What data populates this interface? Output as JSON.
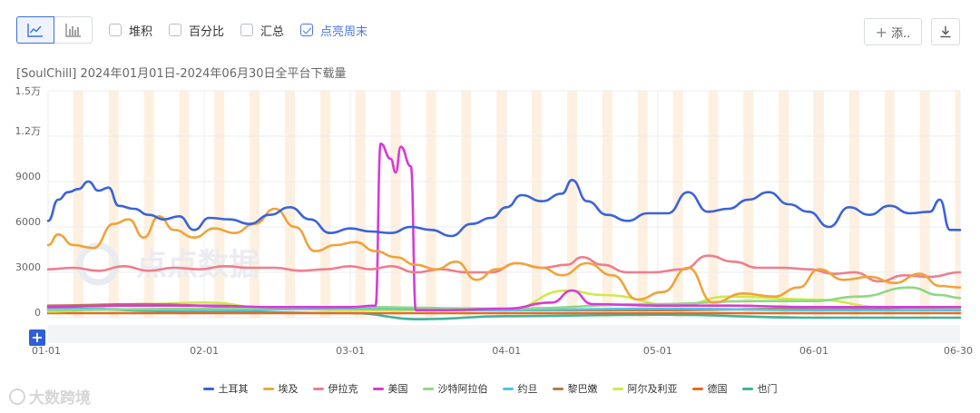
{
  "toolbar": {
    "options": [
      {
        "label": "堆积",
        "checked": false
      },
      {
        "label": "百分比",
        "checked": false
      },
      {
        "label": "汇总",
        "checked": false
      },
      {
        "label": "点亮周末",
        "checked": true
      }
    ],
    "add_label": "添..",
    "add_plus": "+",
    "expand_plus": "+"
  },
  "chart_title": "[SoulChill]  2024年01月01日-2024年06月30日全平台下载量",
  "watermark": "点点数据",
  "footer_watermark": "大数跨境",
  "colors": {
    "accent": "#3d6fe0",
    "weekend_band": "#fdf0e0"
  },
  "chart_data": {
    "type": "line",
    "title": "[SoulChill]  2024年01月01日-2024年06月30日全平台下载量",
    "x_start": "2024-01-01",
    "x_end": "2024-06-30",
    "xtick_labels": [
      "01-01",
      "02-01",
      "03-01",
      "04-01",
      "05-01",
      "06-01",
      "06-30"
    ],
    "xtick_dates": [
      "2024-01-01",
      "2024-02-01",
      "2024-03-01",
      "2024-04-01",
      "2024-05-01",
      "2024-06-01",
      "2024-06-30"
    ],
    "ytick_labels": [
      "0",
      "3000",
      "6000",
      "9000",
      "1.2万",
      "1.5万"
    ],
    "ytick_values": [
      0,
      3000,
      6000,
      9000,
      12000,
      15000
    ],
    "ylim": [
      0,
      15000
    ],
    "grid": true,
    "weekend_highlight": true,
    "legend_position": "bottom",
    "series": [
      {
        "name": "土耳其",
        "color": "#3b63d8",
        "keys": [
          [
            "2024-01-01",
            6400
          ],
          [
            "2024-01-03",
            7800
          ],
          [
            "2024-01-05",
            8300
          ],
          [
            "2024-01-07",
            8500
          ],
          [
            "2024-01-09",
            9000
          ],
          [
            "2024-01-11",
            8400
          ],
          [
            "2024-01-13",
            8600
          ],
          [
            "2024-01-15",
            7400
          ],
          [
            "2024-01-18",
            7200
          ],
          [
            "2024-01-21",
            6800
          ],
          [
            "2024-01-24",
            6500
          ],
          [
            "2024-01-27",
            6700
          ],
          [
            "2024-01-30",
            5800
          ],
          [
            "2024-02-02",
            6600
          ],
          [
            "2024-02-06",
            6500
          ],
          [
            "2024-02-10",
            6200
          ],
          [
            "2024-02-14",
            6800
          ],
          [
            "2024-02-18",
            7300
          ],
          [
            "2024-02-22",
            6500
          ],
          [
            "2024-02-26",
            5600
          ],
          [
            "2024-03-01",
            5900
          ],
          [
            "2024-03-05",
            5700
          ],
          [
            "2024-03-09",
            5600
          ],
          [
            "2024-03-13",
            6000
          ],
          [
            "2024-03-17",
            5800
          ],
          [
            "2024-03-21",
            5400
          ],
          [
            "2024-03-25",
            6200
          ],
          [
            "2024-03-29",
            6600
          ],
          [
            "2024-04-01",
            7300
          ],
          [
            "2024-04-04",
            8100
          ],
          [
            "2024-04-08",
            7700
          ],
          [
            "2024-04-12",
            8200
          ],
          [
            "2024-04-14",
            9100
          ],
          [
            "2024-04-17",
            7700
          ],
          [
            "2024-04-21",
            6800
          ],
          [
            "2024-04-25",
            6400
          ],
          [
            "2024-04-29",
            6900
          ],
          [
            "2024-05-03",
            6900
          ],
          [
            "2024-05-07",
            8300
          ],
          [
            "2024-05-11",
            7000
          ],
          [
            "2024-05-15",
            7200
          ],
          [
            "2024-05-19",
            7800
          ],
          [
            "2024-05-23",
            8300
          ],
          [
            "2024-05-27",
            7500
          ],
          [
            "2024-05-31",
            7000
          ],
          [
            "2024-06-04",
            6000
          ],
          [
            "2024-06-08",
            7300
          ],
          [
            "2024-06-12",
            6800
          ],
          [
            "2024-06-16",
            7400
          ],
          [
            "2024-06-20",
            6900
          ],
          [
            "2024-06-24",
            7000
          ],
          [
            "2024-06-26",
            7800
          ],
          [
            "2024-06-28",
            5800
          ],
          [
            "2024-06-30",
            5800
          ]
        ]
      },
      {
        "name": "埃及",
        "color": "#f0a33a",
        "keys": [
          [
            "2024-01-01",
            4800
          ],
          [
            "2024-01-03",
            5500
          ],
          [
            "2024-01-06",
            4800
          ],
          [
            "2024-01-10",
            4600
          ],
          [
            "2024-01-14",
            6200
          ],
          [
            "2024-01-17",
            6500
          ],
          [
            "2024-01-20",
            5300
          ],
          [
            "2024-01-23",
            6700
          ],
          [
            "2024-01-26",
            5800
          ],
          [
            "2024-01-30",
            5300
          ],
          [
            "2024-02-03",
            5900
          ],
          [
            "2024-02-07",
            5600
          ],
          [
            "2024-02-11",
            6200
          ],
          [
            "2024-02-15",
            7200
          ],
          [
            "2024-02-19",
            6000
          ],
          [
            "2024-02-23",
            4400
          ],
          [
            "2024-02-27",
            4800
          ],
          [
            "2024-03-02",
            5000
          ],
          [
            "2024-03-06",
            4400
          ],
          [
            "2024-03-10",
            4000
          ],
          [
            "2024-03-14",
            3500
          ],
          [
            "2024-03-18",
            3200
          ],
          [
            "2024-03-22",
            3700
          ],
          [
            "2024-03-26",
            2500
          ],
          [
            "2024-03-30",
            3200
          ],
          [
            "2024-04-03",
            3600
          ],
          [
            "2024-04-08",
            3300
          ],
          [
            "2024-04-12",
            2800
          ],
          [
            "2024-04-17",
            3600
          ],
          [
            "2024-04-22",
            2800
          ],
          [
            "2024-04-27",
            1200
          ],
          [
            "2024-05-02",
            1700
          ],
          [
            "2024-05-07",
            3300
          ],
          [
            "2024-05-12",
            1000
          ],
          [
            "2024-05-18",
            1600
          ],
          [
            "2024-05-24",
            1400
          ],
          [
            "2024-05-29",
            2000
          ],
          [
            "2024-06-02",
            3200
          ],
          [
            "2024-06-07",
            2500
          ],
          [
            "2024-06-12",
            2700
          ],
          [
            "2024-06-17",
            2300
          ],
          [
            "2024-06-22",
            2900
          ],
          [
            "2024-06-26",
            2100
          ],
          [
            "2024-06-30",
            2000
          ]
        ]
      },
      {
        "name": "伊拉克",
        "color": "#ef7d8c",
        "keys": [
          [
            "2024-01-01",
            3200
          ],
          [
            "2024-01-06",
            3300
          ],
          [
            "2024-01-11",
            3100
          ],
          [
            "2024-01-16",
            3400
          ],
          [
            "2024-01-21",
            3100
          ],
          [
            "2024-01-26",
            3300
          ],
          [
            "2024-01-31",
            3200
          ],
          [
            "2024-02-05",
            3400
          ],
          [
            "2024-02-10",
            3300
          ],
          [
            "2024-02-15",
            3300
          ],
          [
            "2024-02-20",
            3100
          ],
          [
            "2024-02-25",
            3200
          ],
          [
            "2024-03-01",
            3400
          ],
          [
            "2024-03-05",
            3200
          ],
          [
            "2024-03-09",
            3400
          ],
          [
            "2024-03-14",
            3000
          ],
          [
            "2024-03-19",
            3200
          ],
          [
            "2024-03-24",
            3000
          ],
          [
            "2024-03-29",
            3000
          ],
          [
            "2024-04-03",
            3600
          ],
          [
            "2024-04-08",
            3300
          ],
          [
            "2024-04-13",
            3500
          ],
          [
            "2024-04-16",
            4000
          ],
          [
            "2024-04-20",
            3500
          ],
          [
            "2024-04-25",
            3000
          ],
          [
            "2024-04-30",
            3000
          ],
          [
            "2024-05-06",
            3200
          ],
          [
            "2024-05-11",
            4100
          ],
          [
            "2024-05-16",
            3700
          ],
          [
            "2024-05-21",
            3300
          ],
          [
            "2024-05-26",
            3300
          ],
          [
            "2024-05-31",
            3200
          ],
          [
            "2024-06-05",
            2900
          ],
          [
            "2024-06-09",
            3000
          ],
          [
            "2024-06-14",
            2400
          ],
          [
            "2024-06-19",
            2800
          ],
          [
            "2024-06-24",
            2700
          ],
          [
            "2024-06-30",
            3000
          ]
        ]
      },
      {
        "name": "美国",
        "color": "#d63bd6",
        "keys": [
          [
            "2024-01-01",
            700
          ],
          [
            "2024-01-15",
            800
          ],
          [
            "2024-02-01",
            800
          ],
          [
            "2024-02-15",
            700
          ],
          [
            "2024-03-01",
            700
          ],
          [
            "2024-03-06",
            800
          ],
          [
            "2024-03-07",
            11500
          ],
          [
            "2024-03-09",
            10500
          ],
          [
            "2024-03-10",
            9600
          ],
          [
            "2024-03-11",
            11300
          ],
          [
            "2024-03-13",
            10000
          ],
          [
            "2024-03-14",
            500
          ],
          [
            "2024-03-20",
            500
          ],
          [
            "2024-04-01",
            600
          ],
          [
            "2024-04-10",
            1000
          ],
          [
            "2024-04-14",
            1800
          ],
          [
            "2024-04-18",
            900
          ],
          [
            "2024-05-01",
            800
          ],
          [
            "2024-05-15",
            800
          ],
          [
            "2024-06-01",
            700
          ],
          [
            "2024-06-15",
            700
          ],
          [
            "2024-06-30",
            700
          ]
        ]
      },
      {
        "name": "沙特阿拉伯",
        "color": "#8ed884",
        "keys": [
          [
            "2024-01-01",
            500
          ],
          [
            "2024-02-01",
            600
          ],
          [
            "2024-03-01",
            700
          ],
          [
            "2024-04-01",
            600
          ],
          [
            "2024-05-01",
            900
          ],
          [
            "2024-05-20",
            1100
          ],
          [
            "2024-06-01",
            1100
          ],
          [
            "2024-06-10",
            1400
          ],
          [
            "2024-06-20",
            2000
          ],
          [
            "2024-06-26",
            1500
          ],
          [
            "2024-06-30",
            1300
          ]
        ]
      },
      {
        "name": "约旦",
        "color": "#4fc4e6",
        "keys": [
          [
            "2024-01-01",
            600
          ],
          [
            "2024-02-01",
            500
          ],
          [
            "2024-03-01",
            600
          ],
          [
            "2024-04-01",
            500
          ],
          [
            "2024-05-01",
            600
          ],
          [
            "2024-06-01",
            500
          ],
          [
            "2024-06-30",
            500
          ]
        ]
      },
      {
        "name": "黎巴嫩",
        "color": "#b67c46",
        "keys": [
          [
            "2024-01-01",
            800
          ],
          [
            "2024-01-20",
            900
          ],
          [
            "2024-02-10",
            700
          ],
          [
            "2024-03-01",
            700
          ],
          [
            "2024-04-01",
            500
          ],
          [
            "2024-05-01",
            500
          ],
          [
            "2024-06-01",
            600
          ],
          [
            "2024-06-30",
            700
          ]
        ]
      },
      {
        "name": "阿尔及利亚",
        "color": "#cfe94a",
        "keys": [
          [
            "2024-01-01",
            400
          ],
          [
            "2024-01-20",
            900
          ],
          [
            "2024-02-01",
            1000
          ],
          [
            "2024-02-15",
            600
          ],
          [
            "2024-03-01",
            500
          ],
          [
            "2024-04-01",
            500
          ],
          [
            "2024-04-13",
            1800
          ],
          [
            "2024-04-20",
            1500
          ],
          [
            "2024-05-05",
            800
          ],
          [
            "2024-05-15",
            1400
          ],
          [
            "2024-06-01",
            1200
          ],
          [
            "2024-06-15",
            700
          ],
          [
            "2024-06-30",
            600
          ]
        ]
      },
      {
        "name": "德国",
        "color": "#e86a1e",
        "keys": [
          [
            "2024-01-01",
            300
          ],
          [
            "2024-02-01",
            300
          ],
          [
            "2024-03-01",
            300
          ],
          [
            "2024-04-01",
            300
          ],
          [
            "2024-05-01",
            300
          ],
          [
            "2024-06-01",
            300
          ],
          [
            "2024-06-30",
            300
          ]
        ]
      },
      {
        "name": "也门",
        "color": "#3fb39a",
        "keys": [
          [
            "2024-01-01",
            600
          ],
          [
            "2024-02-01",
            400
          ],
          [
            "2024-03-01",
            300
          ],
          [
            "2024-03-15",
            -100
          ],
          [
            "2024-04-01",
            100
          ],
          [
            "2024-05-01",
            200
          ],
          [
            "2024-06-01",
            0
          ],
          [
            "2024-06-30",
            0
          ]
        ]
      }
    ]
  }
}
